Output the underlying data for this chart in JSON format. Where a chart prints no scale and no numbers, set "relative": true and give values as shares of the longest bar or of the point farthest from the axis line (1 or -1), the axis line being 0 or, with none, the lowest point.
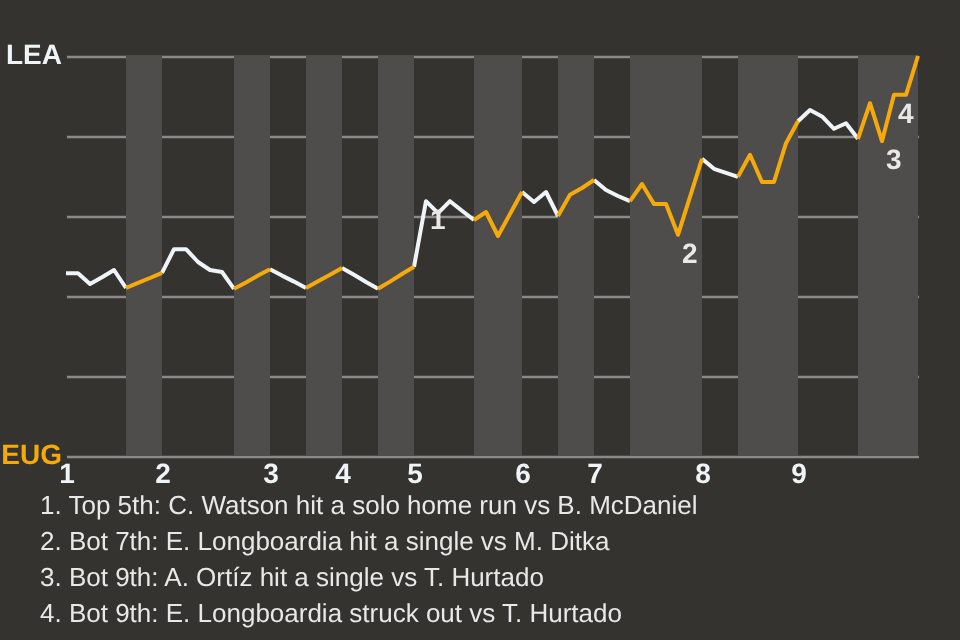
{
  "chart_data": {
    "type": "line",
    "relative": true,
    "categories": [
      "1",
      null,
      null,
      null,
      null,
      null,
      null,
      null,
      "2",
      null,
      null,
      null,
      null,
      null,
      null,
      null,
      null,
      "3",
      null,
      null,
      null,
      null,
      null,
      "4",
      null,
      null,
      null,
      null,
      null,
      "5",
      null,
      null,
      null,
      null,
      null,
      null,
      null,
      null,
      "6",
      null,
      null,
      null,
      null,
      null,
      "7",
      null,
      null,
      null,
      null,
      null,
      null,
      null,
      null,
      "8",
      null,
      null,
      null,
      null,
      null,
      null,
      null,
      "9",
      null,
      null,
      null,
      null,
      null,
      null,
      null,
      null,
      null,
      null
    ],
    "grid": "y",
    "marker": "none",
    "line_style": "solid",
    "series": [
      {
        "color": "#eef4f8",
        "values": [
          0.457,
          0.457,
          0.43,
          0.447,
          0.465,
          0.42,
          null,
          null,
          0.458,
          0.517,
          0.517,
          0.485,
          0.465,
          0.46,
          0.418,
          null,
          null,
          0.467,
          0.451,
          0.436,
          0.42,
          null,
          null,
          0.47,
          0.453,
          0.435,
          0.418,
          null,
          null,
          0.473,
          0.637,
          0.607,
          0.637,
          0.613,
          0.59,
          null,
          null,
          null,
          0.66,
          0.635,
          0.66,
          0.6,
          null,
          null,
          0.69,
          0.665,
          0.65,
          0.637,
          null,
          null,
          null,
          null,
          null,
          0.743,
          0.718,
          0.708,
          0.698,
          null,
          null,
          null,
          null,
          0.837,
          0.865,
          0.849,
          0.818,
          0.832,
          0.793,
          null,
          null,
          null,
          null,
          null
        ]
      },
      {
        "color": "#f5aa0a",
        "values": [
          null,
          null,
          null,
          null,
          null,
          0.42,
          0.433,
          0.445,
          0.458,
          null,
          null,
          null,
          null,
          null,
          0.418,
          0.434,
          0.451,
          0.467,
          null,
          null,
          0.42,
          0.437,
          0.453,
          0.47,
          null,
          null,
          0.418,
          0.436,
          0.455,
          0.473,
          null,
          null,
          null,
          null,
          0.59,
          0.61,
          0.55,
          0.605,
          0.66,
          null,
          null,
          0.6,
          0.653,
          0.67,
          0.69,
          null,
          null,
          0.637,
          0.68,
          0.63,
          0.63,
          0.553,
          0.648,
          0.743,
          null,
          null,
          0.698,
          0.753,
          0.685,
          0.685,
          0.782,
          0.837,
          null,
          null,
          null,
          null,
          0.793,
          0.882,
          0.787,
          0.903,
          0.903,
          1
        ]
      }
    ],
    "annotations": [
      "LEA",
      "EUG",
      {
        "text": "1",
        "y": 0.637
      },
      {
        "text": "2",
        "y": 0.553
      },
      {
        "text": "3",
        "y": 0.787
      },
      {
        "text": "4",
        "y": 0.903
      },
      "1. Top 5th: C. Watson hit a solo home run vs B. McDaniel",
      "2. Bot 7th: E. Longboardia hit a single vs M. Ditka",
      "3. Bot 9th: A. Ortíz hit a single vs T. Hurtado",
      "4. Bot 9th: E. Longboardia struck out vs T. Hurtado"
    ]
  }
}
